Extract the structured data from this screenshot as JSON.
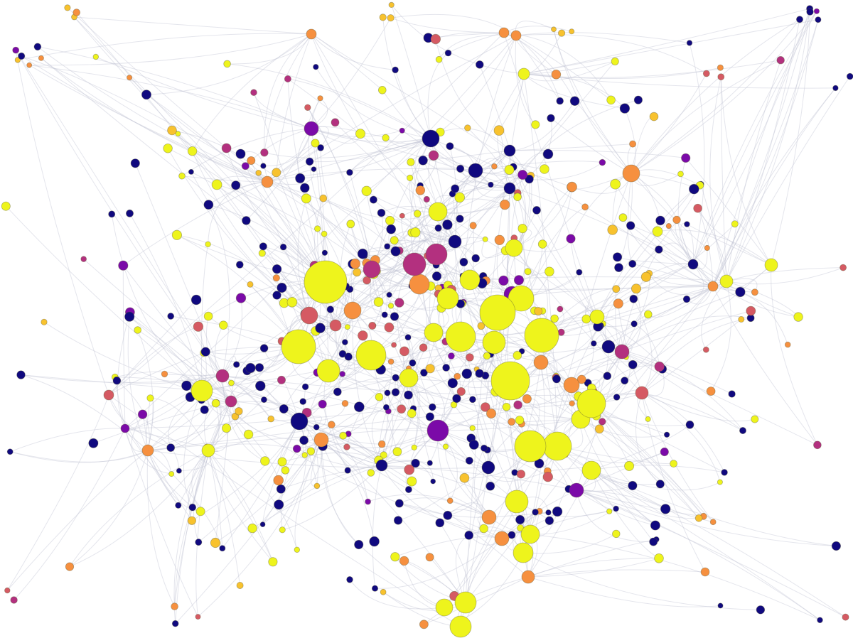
{
  "graph": {
    "background": "#ffffff",
    "edge_color": "#c3c6d4",
    "node_outline": "#5a5a3a",
    "palette": {
      "dark_blue": "#10097f",
      "purple": "#7b0aa8",
      "magenta": "#b3307f",
      "red": "#d55a63",
      "orange": "#f6903f",
      "gold": "#f8c22e",
      "yellow": "#eef41c"
    }
  }
}
